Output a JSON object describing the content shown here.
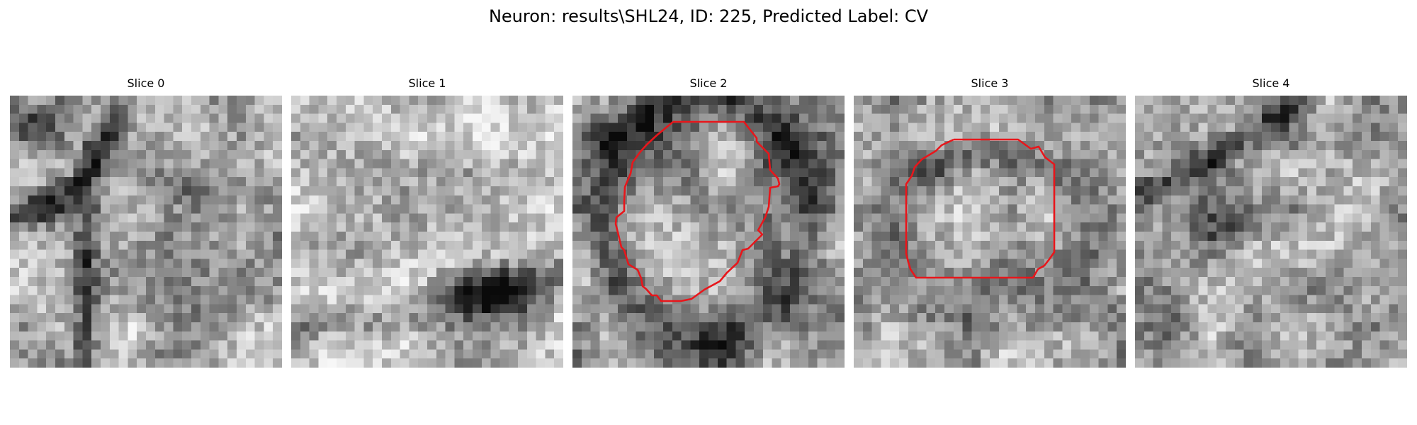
{
  "figure": {
    "title": "Neuron: results\\SHL24, ID: 225, Predicted Label: CV"
  },
  "colors": {
    "contour": "#e8161b",
    "background": "#ffffff"
  },
  "slices": [
    {
      "title": "Slice 0",
      "image": "grayscale EM patch with dark membrane bands",
      "has_contour": false
    },
    {
      "title": "Slice 1",
      "image": "grayscale EM patch, light with dark blob lower right",
      "has_contour": false
    },
    {
      "title": "Slice 2",
      "image": "grayscale EM patch with outlined round vesicle",
      "has_contour": true
    },
    {
      "title": "Slice 3",
      "image": "grayscale EM patch with outlined octagonal region",
      "has_contour": true
    },
    {
      "title": "Slice 4",
      "image": "grayscale EM patch with dark diagonal band",
      "has_contour": false
    }
  ]
}
